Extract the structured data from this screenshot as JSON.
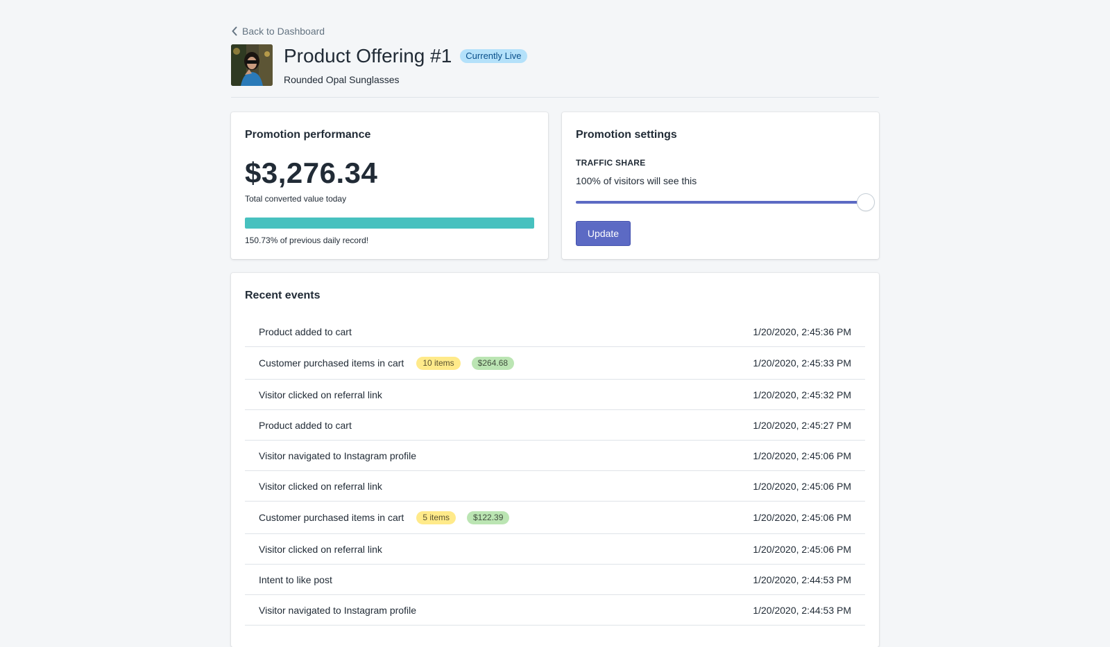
{
  "nav": {
    "back_label": "Back to Dashboard"
  },
  "header": {
    "title": "Product Offering #1",
    "status_badge": "Currently Live",
    "subtitle": "Rounded Opal Sunglasses",
    "thumbnail_icon": "product-photo-woman-sunglasses"
  },
  "performance": {
    "title": "Promotion performance",
    "value": "$3,276.34",
    "value_caption": "Total converted value today",
    "progress_caption": "150.73% of previous daily record!",
    "progress_fill_percent": 100,
    "progress_color": "#47c1bf"
  },
  "settings": {
    "title": "Promotion settings",
    "label": "TRAFFIC SHARE",
    "description": "100% of visitors will see this",
    "slider_value_percent": 100,
    "slider_color": "#5c6ac4",
    "update_label": "Update"
  },
  "events": {
    "title": "Recent events",
    "items": [
      {
        "text": "Product added to cart",
        "time": "1/20/2020, 2:45:36 PM"
      },
      {
        "text": "Customer purchased items in cart",
        "items_tag": "10 items",
        "amount_tag": "$264.68",
        "time": "1/20/2020, 2:45:33 PM"
      },
      {
        "text": "Visitor clicked on referral link",
        "time": "1/20/2020, 2:45:32 PM"
      },
      {
        "text": "Product added to cart",
        "time": "1/20/2020, 2:45:27 PM"
      },
      {
        "text": "Visitor navigated to Instagram profile",
        "time": "1/20/2020, 2:45:06 PM"
      },
      {
        "text": "Visitor clicked on referral link",
        "time": "1/20/2020, 2:45:06 PM"
      },
      {
        "text": "Customer purchased items in cart",
        "items_tag": "5 items",
        "amount_tag": "$122.39",
        "time": "1/20/2020, 2:45:06 PM"
      },
      {
        "text": "Visitor clicked on referral link",
        "time": "1/20/2020, 2:45:06 PM"
      },
      {
        "text": "Intent to like post",
        "time": "1/20/2020, 2:44:53 PM"
      },
      {
        "text": "Visitor navigated to Instagram profile",
        "time": "1/20/2020, 2:44:53 PM"
      }
    ]
  }
}
